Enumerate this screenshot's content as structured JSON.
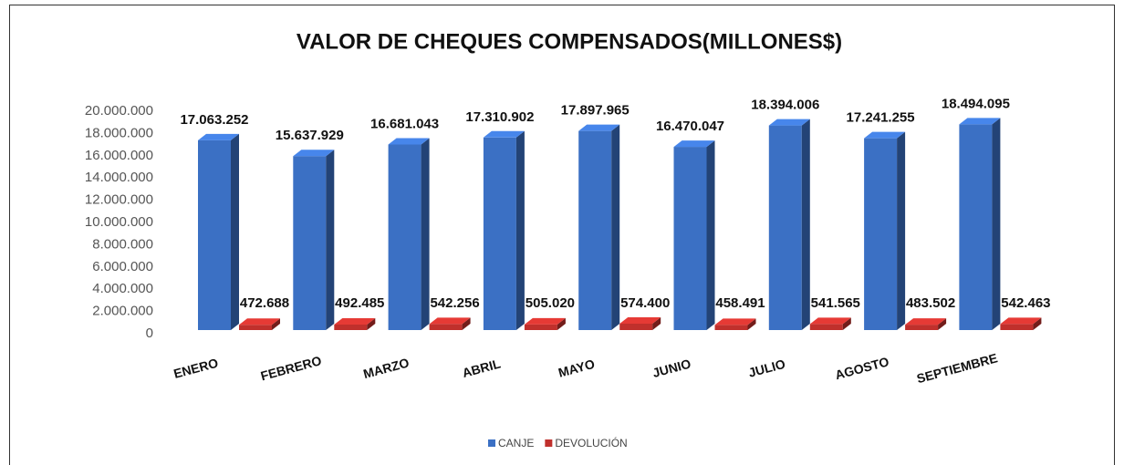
{
  "chart_data": {
    "type": "bar3d",
    "title": "VALOR DE CHEQUES COMPENSADOS(MILLONES$)",
    "categories": [
      "ENERO",
      "FEBRERO",
      "MARZO",
      "ABRIL",
      "MAYO",
      "JUNIO",
      "JULIO",
      "AGOSTO",
      "SEPTIEMBRE"
    ],
    "series": [
      {
        "name": "CANJE",
        "color": "#3b70c4",
        "values": [
          17063252,
          15637929,
          16681043,
          17310902,
          17897965,
          16470047,
          18394006,
          17241255,
          18494095
        ],
        "value_labels": [
          "17.063.252",
          "15.637.929",
          "16.681.043",
          "17.310.902",
          "17.897.965",
          "16.470.047",
          "18.394.006",
          "17.241.255",
          "18.494.095"
        ]
      },
      {
        "name": "DEVOLUCIÓN",
        "color": "#c0302c",
        "values": [
          472688,
          492485,
          542256,
          505020,
          574400,
          458491,
          541565,
          483502,
          542463
        ],
        "value_labels": [
          "472.688",
          "492.485",
          "542.256",
          "505.020",
          "574.400",
          "458.491",
          "541.565",
          "483.502",
          "542.463"
        ]
      }
    ],
    "ylim": [
      0,
      20000000
    ],
    "yticks": [
      0,
      {
        "value": 2000000,
        "label": "2.000.000"
      },
      {
        "value": 4000000,
        "label": "4.000.000"
      },
      {
        "value": 6000000,
        "label": "6.000.000"
      },
      {
        "value": 8000000,
        "label": "8.000.000"
      },
      {
        "value": 10000000,
        "label": "10.000.000"
      },
      {
        "value": 12000000,
        "label": "12.000.000"
      },
      {
        "value": 14000000,
        "label": "14.000.000"
      },
      {
        "value": 16000000,
        "label": "16.000.000"
      },
      {
        "value": 18000000,
        "label": "18.000.000"
      },
      {
        "value": 20000000,
        "label": "20.000.000"
      }
    ],
    "grid": false,
    "legend": "bottom"
  }
}
